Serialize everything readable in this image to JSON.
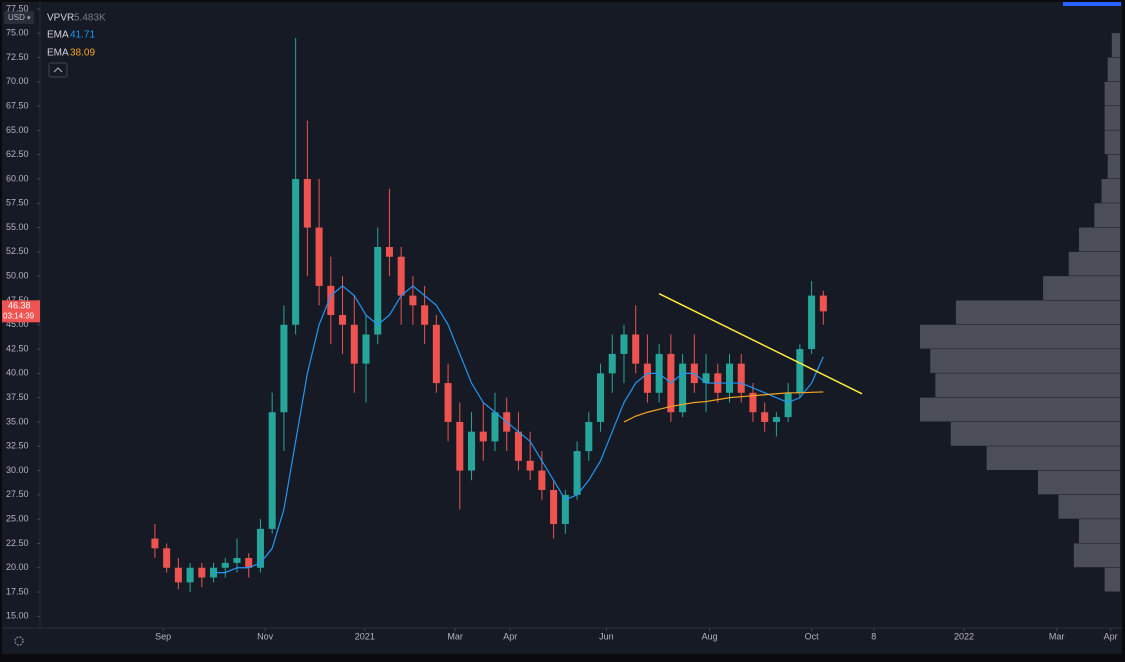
{
  "chart_data": {
    "type": "candlestick",
    "currency": "USD",
    "up_color": "#26a69a",
    "down_color": "#ef5350",
    "open": [
      23,
      22,
      20,
      18.5,
      20,
      19,
      20,
      20.5,
      21,
      20,
      24,
      36,
      45,
      60,
      55,
      49,
      46,
      45,
      41,
      44,
      53,
      52,
      48,
      47,
      45,
      39,
      35,
      30,
      34,
      33,
      36,
      34,
      31,
      30,
      28,
      24.5,
      27.5,
      32,
      35,
      40,
      42,
      44,
      41,
      38,
      42,
      36,
      41,
      39,
      40,
      38,
      41,
      38,
      36,
      35,
      35.5,
      38,
      42.5,
      48
    ],
    "high": [
      24.5,
      22.5,
      21,
      20.5,
      20.5,
      20.5,
      21,
      23,
      21.5,
      25,
      38,
      47,
      74.5,
      66,
      60,
      52,
      50,
      48,
      46,
      55,
      59,
      53,
      50,
      49,
      46,
      41,
      37,
      36,
      37,
      38,
      37.5,
      36,
      34,
      32,
      29,
      28,
      33,
      36,
      41,
      44,
      45,
      47,
      44,
      43,
      44,
      42,
      44,
      42,
      41,
      42,
      42,
      39,
      37,
      36,
      39,
      43,
      49.5,
      48.5
    ],
    "low": [
      21,
      19.5,
      17.8,
      17.5,
      18,
      18.5,
      19,
      19.5,
      19,
      19.5,
      23.5,
      32,
      44,
      50,
      47,
      43,
      42,
      38,
      37,
      43,
      50,
      45,
      45,
      43,
      38,
      33,
      26,
      29,
      31,
      32,
      32,
      30,
      29,
      27,
      23,
      23.5,
      27,
      31,
      34,
      38,
      39,
      40,
      37,
      37,
      35,
      35.5,
      38,
      36,
      37,
      37,
      37,
      35,
      34,
      33.5,
      35,
      37.5,
      42,
      45
    ],
    "close": [
      22,
      20,
      18.5,
      20,
      19,
      20,
      20.5,
      21,
      20,
      24,
      36,
      45,
      60,
      55,
      49,
      46,
      45,
      41,
      44,
      53,
      52,
      48,
      47,
      45,
      39,
      35,
      30,
      34,
      33,
      36,
      34,
      31,
      30,
      28,
      24.5,
      27.5,
      32,
      35,
      40,
      42,
      44,
      41,
      38,
      42,
      36,
      41,
      39,
      40,
      38,
      41,
      38,
      36,
      35,
      35.5,
      38,
      42.5,
      48,
      46.38
    ],
    "series": [
      {
        "name": "EMA",
        "color": "#2196f3",
        "values": [
          null,
          null,
          null,
          null,
          null,
          19.5,
          19.5,
          20,
          20,
          20.5,
          22,
          26,
          33,
          40,
          45,
          48,
          49,
          48,
          46,
          45,
          46,
          48,
          49,
          48,
          47,
          45,
          42,
          39,
          37,
          36,
          35,
          34,
          33,
          31,
          29,
          27,
          27.5,
          29,
          31,
          34,
          37,
          39,
          40,
          40,
          39,
          40,
          40,
          39,
          39,
          39,
          39,
          38.5,
          38,
          37.5,
          37,
          37.5,
          39,
          41.71
        ]
      },
      {
        "name": "EMA",
        "color": "#f5a623",
        "values": [
          null,
          null,
          null,
          null,
          null,
          null,
          null,
          null,
          null,
          null,
          null,
          null,
          null,
          null,
          null,
          null,
          null,
          null,
          null,
          null,
          null,
          null,
          null,
          null,
          null,
          null,
          null,
          null,
          null,
          null,
          null,
          null,
          null,
          null,
          null,
          null,
          null,
          null,
          null,
          null,
          35,
          35.6,
          36,
          36.3,
          36.6,
          36.8,
          37,
          37.1,
          37.3,
          37.5,
          37.6,
          37.7,
          37.8,
          37.9,
          38,
          38,
          38.05,
          38.09
        ]
      }
    ],
    "vpvr": {
      "name": "VPVR",
      "value_label": "5.483K",
      "color": "#5d606b",
      "bins": [
        17.5,
        20,
        22.5,
        25,
        27.5,
        30,
        32.5,
        35,
        37.5,
        40,
        42.5,
        45,
        47.5,
        50,
        52.5,
        55,
        57.5,
        60,
        62.5,
        65,
        67.5,
        70,
        72.5,
        75
      ],
      "values": [
        15,
        45,
        40,
        60,
        80,
        130,
        165,
        195,
        180,
        185,
        195,
        160,
        75,
        50,
        40,
        25,
        18,
        12,
        15,
        15,
        15,
        12,
        8
      ]
    },
    "trendline": {
      "color": "#ffeb3b",
      "x": [
        43,
        60.3
      ],
      "y": [
        48.2,
        37.9
      ]
    },
    "countdown": "03:14:39",
    "xlim": [
      -9.8,
      82.3
    ],
    "xticks": [
      {
        "value": 0.7,
        "label": "Sep"
      },
      {
        "value": 9.4,
        "label": "Nov"
      },
      {
        "value": 17.9,
        "label": "2021"
      },
      {
        "value": 25.6,
        "label": "Mar"
      },
      {
        "value": 30.3,
        "label": "Apr"
      },
      {
        "value": 38.5,
        "label": "Jun"
      },
      {
        "value": 47.3,
        "label": "Aug"
      },
      {
        "value": 56,
        "label": "Oct"
      },
      {
        "value": 61.3,
        "label": "8"
      },
      {
        "value": 69,
        "label": "2022"
      },
      {
        "value": 76.9,
        "label": "Mar"
      },
      {
        "value": 81.5,
        "label": "Apr"
      }
    ],
    "ylim": [
      13.8,
      77.9
    ],
    "yticks": [
      {
        "value": 15,
        "label": "15.00"
      },
      {
        "value": 17.5,
        "label": "17.50"
      },
      {
        "value": 20,
        "label": "20.00"
      },
      {
        "value": 22.5,
        "label": "22.50"
      },
      {
        "value": 25,
        "label": "25.00"
      },
      {
        "value": 27.5,
        "label": "27.50"
      },
      {
        "value": 30,
        "label": "30.00"
      },
      {
        "value": 32.5,
        "label": "32.50"
      },
      {
        "value": 35,
        "label": "35.00"
      },
      {
        "value": 37.5,
        "label": "37.50"
      },
      {
        "value": 40,
        "label": "40.00"
      },
      {
        "value": 42.5,
        "label": "42.50"
      },
      {
        "value": 45,
        "label": "45.00"
      },
      {
        "value": 47.5,
        "label": "47.50"
      },
      {
        "value": 50,
        "label": "50.00"
      },
      {
        "value": 52.5,
        "label": "52.50"
      },
      {
        "value": 55,
        "label": "55.00"
      },
      {
        "value": 57.5,
        "label": "57.50"
      },
      {
        "value": 60,
        "label": "60.00"
      },
      {
        "value": 62.5,
        "label": "62.50"
      },
      {
        "value": 65,
        "label": "65.00"
      },
      {
        "value": 67.5,
        "label": "67.50"
      },
      {
        "value": 70,
        "label": "70.00"
      },
      {
        "value": 72.5,
        "label": "72.50"
      },
      {
        "value": 75,
        "label": "75.00"
      },
      {
        "value": 77.5,
        "label": "77.50"
      }
    ]
  }
}
